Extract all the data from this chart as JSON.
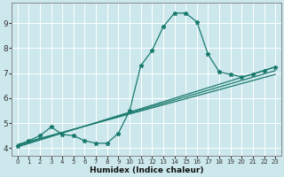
{
  "xlabel": "Humidex (Indice chaleur)",
  "xlim": [
    -0.5,
    23.5
  ],
  "ylim": [
    3.7,
    9.8
  ],
  "xticks": [
    0,
    1,
    2,
    3,
    4,
    5,
    6,
    7,
    8,
    9,
    10,
    11,
    12,
    13,
    14,
    15,
    16,
    17,
    18,
    19,
    20,
    21,
    22,
    23
  ],
  "yticks": [
    4,
    5,
    6,
    7,
    8,
    9
  ],
  "background_color": "#cce8ec",
  "grid_color": "#ffffff",
  "line_color": "#1a7a6e",
  "curve1_x": [
    0,
    1,
    2,
    3,
    4,
    5,
    6,
    7,
    8,
    9,
    10,
    11,
    12,
    13,
    14,
    15,
    16,
    17,
    18,
    19,
    20,
    21,
    22,
    23
  ],
  "curve1_y": [
    4.1,
    4.3,
    4.5,
    4.85,
    4.55,
    4.5,
    4.3,
    4.2,
    4.2,
    4.6,
    5.5,
    7.3,
    7.9,
    8.85,
    9.4,
    9.4,
    9.05,
    7.75,
    7.05,
    6.95,
    6.85,
    6.95,
    7.1,
    7.25
  ],
  "line1_x": [
    0,
    23
  ],
  "line1_y": [
    4.05,
    7.25
  ],
  "line2_x": [
    0,
    23
  ],
  "line2_y": [
    4.1,
    7.1
  ],
  "line3_x": [
    0,
    23
  ],
  "line3_y": [
    4.15,
    6.95
  ]
}
